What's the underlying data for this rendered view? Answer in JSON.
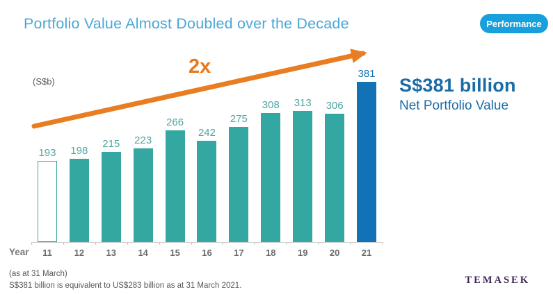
{
  "header": {
    "title": "Portfolio Value Almost Doubled over the Decade",
    "title_color": "#4AA7D5",
    "badge_label": "Performance",
    "badge_color": "#18A0DC"
  },
  "chart_data": {
    "type": "bar",
    "title": "Portfolio Value Almost Doubled over the Decade",
    "unit_label": "(S$b)",
    "xlabel": "Year",
    "categories": [
      "11",
      "12",
      "13",
      "14",
      "15",
      "16",
      "17",
      "18",
      "19",
      "20",
      "21"
    ],
    "values": [
      193,
      198,
      215,
      223,
      266,
      242,
      275,
      308,
      313,
      306,
      381
    ],
    "value_labels_shown": true,
    "y_axis_shown": false,
    "grid": false,
    "legend": "none",
    "bar_color": "#35A7A2",
    "outline_bar_index": 0,
    "highlight_bar_index": 10,
    "highlight_bar_color": "#1272B5",
    "value_label_color": "#4FA6A1",
    "annotation": {
      "label": "2x",
      "color": "#E87D22",
      "shape": "upward-arrow"
    }
  },
  "arrow": {
    "label": "2x",
    "color": "#E87D22"
  },
  "highlight": {
    "value": "S$381 billion",
    "label": "Net Portfolio Value",
    "color": "#1A6CA6"
  },
  "footnotes": [
    "(as at 31 March)",
    "S$381 billion is equivalent to US$283 billion as at 31 March 2021."
  ],
  "logo": {
    "text": "TEMASEK",
    "color": "#3E2A55"
  }
}
